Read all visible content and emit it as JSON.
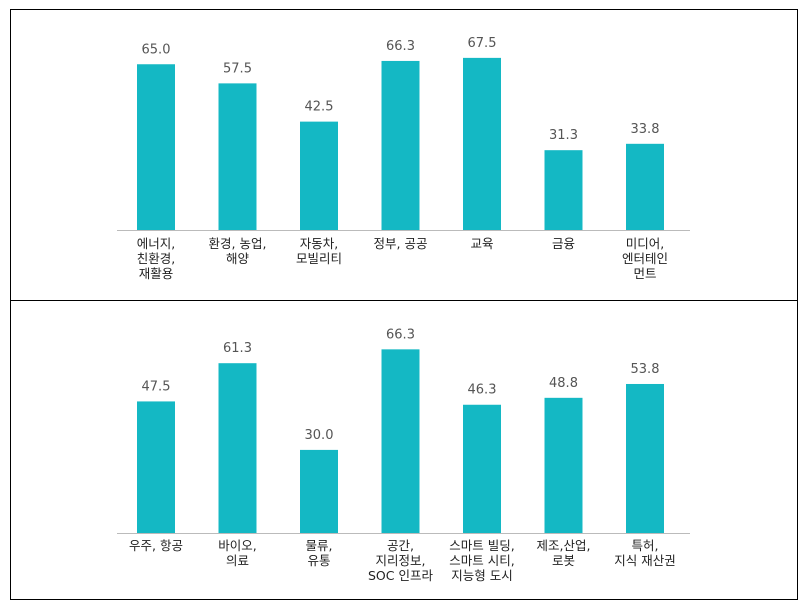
{
  "colors": {
    "bar": "#14b8c4",
    "value_label": "#555555",
    "category_label": "#222222",
    "frame": "#000000",
    "axis": "#bbbbbb"
  },
  "chart_data": [
    {
      "type": "bar",
      "categories": [
        [
          "에너지,",
          "친환경,",
          "재활용"
        ],
        [
          "환경, 농업,",
          "해양"
        ],
        [
          "자동차,",
          "모빌리티"
        ],
        [
          "정부, 공공"
        ],
        [
          "교육"
        ],
        [
          "금융"
        ],
        [
          "미디어,",
          "엔터테인",
          "먼트"
        ]
      ],
      "values": [
        65.0,
        57.5,
        42.5,
        66.3,
        67.5,
        31.3,
        33.8
      ],
      "value_labels": [
        "65.0",
        "57.5",
        "42.5",
        "66.3",
        "67.5",
        "31.3",
        "33.8"
      ],
      "ylim": [
        0,
        80
      ],
      "grid": false
    },
    {
      "type": "bar",
      "categories": [
        [
          "우주, 항공"
        ],
        [
          "바이오,",
          "의료"
        ],
        [
          "물류,",
          "유통"
        ],
        [
          "공간,",
          "지리정보,",
          "SOC 인프라"
        ],
        [
          "스마트 빌딩,",
          "스마트 시티,",
          "지능형 도시"
        ],
        [
          "제조,산업,",
          "로봇"
        ],
        [
          "특허,",
          "지식 재산권"
        ]
      ],
      "values": [
        47.5,
        61.3,
        30.0,
        66.3,
        46.3,
        48.8,
        53.8
      ],
      "value_labels": [
        "47.5",
        "61.3",
        "30.0",
        "66.3",
        "46.3",
        "48.8",
        "53.8"
      ],
      "ylim": [
        0,
        80
      ],
      "grid": false
    }
  ]
}
